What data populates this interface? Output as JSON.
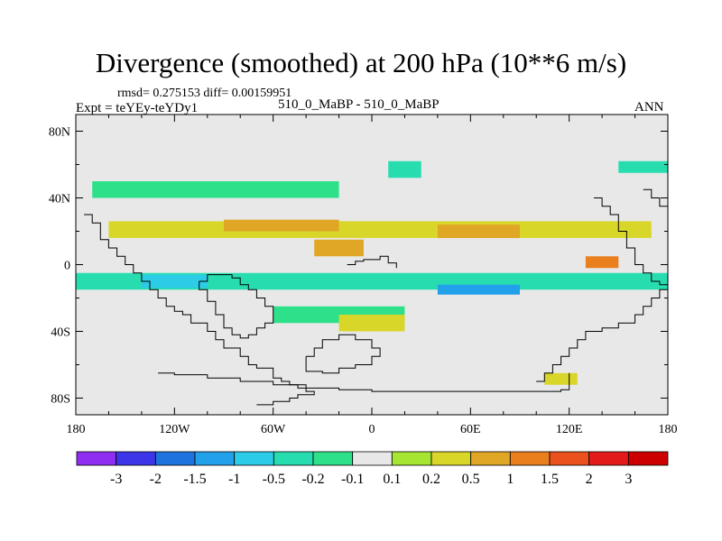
{
  "chart_data": {
    "type": "heatmap",
    "title": "Divergence (smoothed) at 200 hPa (10**6 m/s)",
    "stats_text": "rmsd= 0.275153 diff= 0.00159951",
    "experiment_label": "Expt = teYEy-teYDy1",
    "comparison_label": "510_0_MaBP - 510_0_MaBP",
    "season": "ANN",
    "xlim": [
      -180,
      180
    ],
    "ylim": [
      -90,
      90
    ],
    "x_ticks": [
      {
        "value": -180,
        "label": "180"
      },
      {
        "value": -120,
        "label": "120W"
      },
      {
        "value": -60,
        "label": "60W"
      },
      {
        "value": 0,
        "label": "0"
      },
      {
        "value": 60,
        "label": "60E"
      },
      {
        "value": 120,
        "label": "120E"
      },
      {
        "value": 180,
        "label": "180"
      }
    ],
    "y_ticks": [
      {
        "value": 80,
        "label": "80N"
      },
      {
        "value": 40,
        "label": "40N"
      },
      {
        "value": 0,
        "label": "0"
      },
      {
        "value": -40,
        "label": "40S"
      },
      {
        "value": -80,
        "label": "80S"
      }
    ],
    "colorbar": {
      "levels": [
        "-3",
        "-2",
        "-1.5",
        "-1",
        "-0.5",
        "-0.2",
        "-0.1",
        "0.1",
        "0.2",
        "0.5",
        "1",
        "1.5",
        "2",
        "3"
      ],
      "colors": [
        "#8f2ef0",
        "#3d35e8",
        "#1f73de",
        "#22a0ea",
        "#2ccbe6",
        "#27ddb0",
        "#2fe08a",
        "#e8e8e8",
        "#a6e632",
        "#d9d62a",
        "#e0a626",
        "#ea7f1e",
        "#ea511c",
        "#e31a1a",
        "#cc0000"
      ]
    },
    "background_color": "#e8e8e8",
    "regions": [
      {
        "level": "0.2",
        "lon": [
          -160,
          170,
          170,
          -160
        ],
        "lat": [
          26,
          26,
          16,
          16
        ]
      },
      {
        "level": "0.5",
        "lon": [
          -90,
          -20,
          -20,
          -90
        ],
        "lat": [
          27,
          27,
          20,
          20
        ]
      },
      {
        "level": "0.5",
        "lon": [
          40,
          90,
          90,
          40
        ],
        "lat": [
          24,
          24,
          16,
          16
        ]
      },
      {
        "level": "-0.2",
        "lon": [
          -180,
          180,
          180,
          -180
        ],
        "lat": [
          -5,
          -5,
          -15,
          -15
        ]
      },
      {
        "level": "-0.5",
        "lon": [
          -140,
          -100,
          -100,
          -140
        ],
        "lat": [
          -6,
          -6,
          -14,
          -14
        ]
      },
      {
        "level": "-1",
        "lon": [
          40,
          90,
          90,
          40
        ],
        "lat": [
          -12,
          -12,
          -18,
          -18
        ]
      },
      {
        "level": "-0.1",
        "lon": [
          -170,
          -20,
          -20,
          -170
        ],
        "lat": [
          50,
          50,
          40,
          40
        ]
      },
      {
        "level": "-0.1",
        "lon": [
          -60,
          20,
          20,
          -60
        ],
        "lat": [
          -25,
          -25,
          -35,
          -35
        ]
      },
      {
        "level": "1",
        "lon": [
          130,
          150,
          150,
          130
        ],
        "lat": [
          5,
          5,
          -2,
          -2
        ]
      },
      {
        "level": "0.5",
        "lon": [
          -35,
          -5,
          -5,
          -35
        ],
        "lat": [
          15,
          15,
          5,
          5
        ]
      },
      {
        "level": "-0.2",
        "lon": [
          10,
          30,
          30,
          10
        ],
        "lat": [
          62,
          62,
          52,
          52
        ]
      },
      {
        "level": "-0.2",
        "lon": [
          150,
          180,
          180,
          150
        ],
        "lat": [
          62,
          62,
          55,
          55
        ]
      },
      {
        "level": "0.2",
        "lon": [
          -20,
          20,
          20,
          -20
        ],
        "lat": [
          -30,
          -30,
          -40,
          -40
        ]
      },
      {
        "level": "0.2",
        "lon": [
          105,
          125,
          125,
          105
        ],
        "lat": [
          -65,
          -65,
          -72,
          -72
        ]
      }
    ],
    "coastlines": [
      {
        "name": "americas",
        "lon": [
          -175,
          -170,
          -165,
          -160,
          -155,
          -150,
          -145,
          -140,
          -135,
          -130,
          -125,
          -120,
          -115,
          -110,
          -100,
          -95,
          -90,
          -80,
          -75,
          -70,
          -60,
          -55,
          -50,
          -45,
          -40,
          -35,
          -45,
          -50,
          -60,
          -65,
          -70,
          -70
        ],
        "lat": [
          30,
          25,
          15,
          10,
          5,
          0,
          -5,
          -10,
          -15,
          -20,
          -25,
          -28,
          -30,
          -35,
          -40,
          -45,
          -50,
          -55,
          -60,
          -62,
          -68,
          -70,
          -72,
          -74,
          -76,
          -78,
          -80,
          -82,
          -84,
          -84,
          -84,
          -84
        ]
      },
      {
        "name": "south_america_outline",
        "lon": [
          -105,
          -100,
          -90,
          -85,
          -80,
          -75,
          -70,
          -65,
          -60,
          -60,
          -65,
          -70,
          -75,
          -80,
          -85,
          -90,
          -95,
          -100,
          -105
        ],
        "lat": [
          -10,
          -6,
          -6,
          -8,
          -12,
          -15,
          -20,
          -25,
          -30,
          -35,
          -38,
          -42,
          -44,
          -42,
          -38,
          -30,
          -22,
          -15,
          -10
        ]
      },
      {
        "name": "africa_north",
        "lon": [
          -15,
          -10,
          -5,
          0,
          5,
          10,
          15
        ],
        "lat": [
          0,
          2,
          3,
          3,
          5,
          1,
          -2
        ]
      },
      {
        "name": "antarctic_ice",
        "lon": [
          -40,
          -35,
          -30,
          -20,
          -10,
          0,
          5,
          0,
          -10,
          -20,
          -30,
          -40,
          -40
        ],
        "lat": [
          -55,
          -50,
          -45,
          -42,
          -45,
          -50,
          -55,
          -60,
          -62,
          -65,
          -64,
          -60,
          -55
        ]
      },
      {
        "name": "asia_pacific",
        "lon": [
          100,
          105,
          110,
          115,
          120,
          125,
          130,
          140,
          150,
          160,
          165,
          170,
          175,
          180
        ],
        "lat": [
          -70,
          -65,
          -60,
          -55,
          -50,
          -45,
          -40,
          -38,
          -35,
          -30,
          -25,
          -20,
          -15,
          -10
        ]
      },
      {
        "name": "antarctica",
        "lon": [
          -130,
          -120,
          -100,
          -80,
          -60,
          -40,
          -20,
          0,
          20,
          40,
          60,
          80,
          100,
          115,
          120,
          120
        ],
        "lat": [
          -65,
          -66,
          -68,
          -70,
          -72,
          -74,
          -75,
          -76,
          -76,
          -76,
          -76,
          -76,
          -76,
          -75,
          -72,
          -65
        ]
      },
      {
        "name": "east_asia",
        "lon": [
          135,
          140,
          145,
          150,
          155,
          160,
          165,
          170,
          175,
          180
        ],
        "lat": [
          40,
          35,
          30,
          20,
          10,
          0,
          -5,
          -10,
          -12,
          -14
        ]
      },
      {
        "name": "northwest_pacific",
        "lon": [
          165,
          170,
          175,
          180
        ],
        "lat": [
          45,
          40,
          35,
          30
        ]
      }
    ]
  }
}
